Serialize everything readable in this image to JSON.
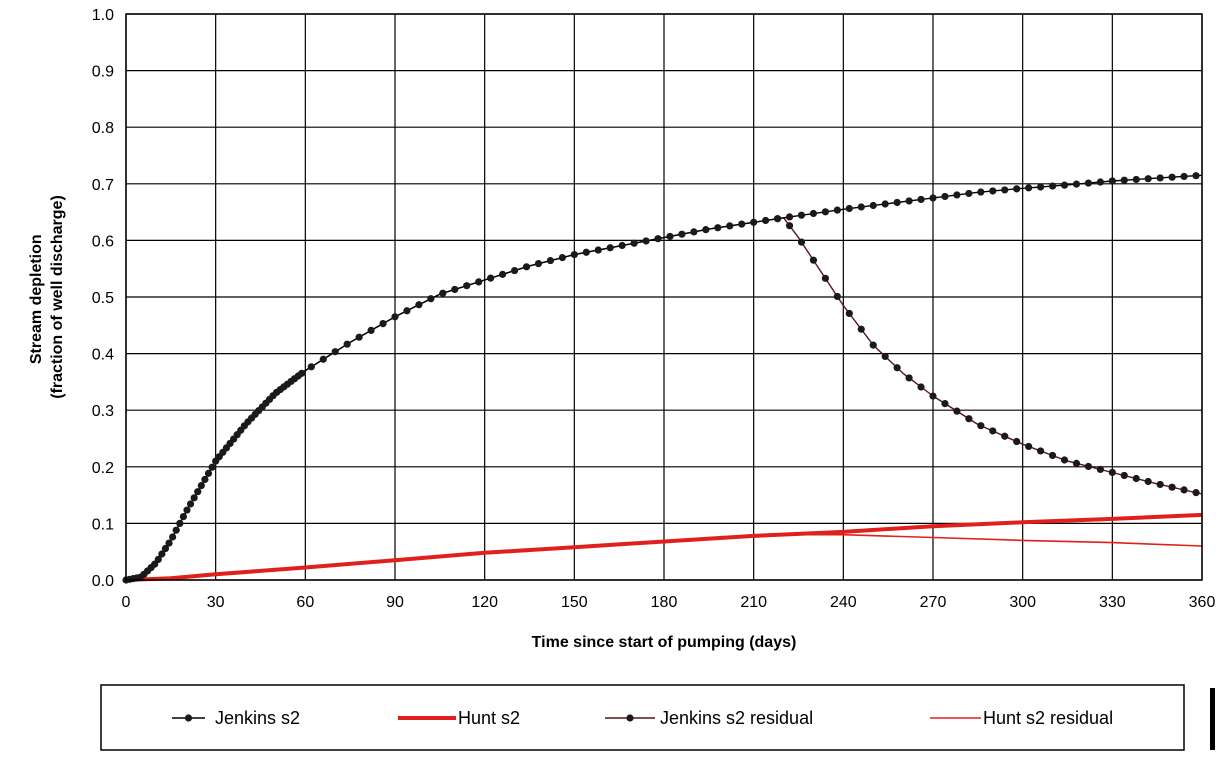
{
  "chart_data": {
    "type": "line",
    "title": "",
    "xlabel": "Time since start of pumping (days)",
    "ylabel_lines": [
      "Stream depletion",
      "(fraction of well discharge)"
    ],
    "xlim": [
      0,
      360
    ],
    "ylim": [
      0,
      1.0
    ],
    "x_ticks": [
      0,
      30,
      60,
      90,
      120,
      150,
      180,
      210,
      240,
      270,
      300,
      330,
      360
    ],
    "y_ticks": [
      0.0,
      0.1,
      0.2,
      0.3,
      0.4,
      0.5,
      0.6,
      0.7,
      0.8,
      0.9,
      1.0
    ],
    "y_tick_labels": [
      "0.0",
      "0.1",
      "0.2",
      "0.3",
      "0.4",
      "0.5",
      "0.6",
      "0.7",
      "0.8",
      "0.9",
      "1.0"
    ],
    "grid": true,
    "legend_position": "bottom",
    "series": [
      {
        "name": "Jenkins s2",
        "color": "#000000",
        "style": "line-with-dots",
        "x": [
          0,
          5,
          10,
          15,
          20,
          25,
          30,
          40,
          50,
          60,
          75,
          90,
          105,
          120,
          135,
          150,
          165,
          180,
          195,
          210,
          220,
          240,
          255,
          270,
          285,
          300,
          315,
          330,
          345,
          360
        ],
        "y": [
          0.0,
          0.005,
          0.03,
          0.07,
          0.12,
          0.165,
          0.21,
          0.275,
          0.33,
          0.37,
          0.42,
          0.465,
          0.505,
          0.53,
          0.555,
          0.575,
          0.59,
          0.605,
          0.62,
          0.632,
          0.64,
          0.655,
          0.665,
          0.675,
          0.685,
          0.692,
          0.698,
          0.705,
          0.71,
          0.715
        ]
      },
      {
        "name": "Hunt s2",
        "color": "#e0201c",
        "style": "thick-line",
        "x": [
          0,
          15,
          30,
          60,
          90,
          120,
          150,
          180,
          210,
          240,
          270,
          300,
          330,
          360
        ],
        "y": [
          0.0,
          0.003,
          0.01,
          0.022,
          0.035,
          0.048,
          0.058,
          0.068,
          0.078,
          0.085,
          0.095,
          0.102,
          0.108,
          0.115
        ]
      },
      {
        "name": "Jenkins s2 residual",
        "color": "#5a1418",
        "style": "line-with-dots",
        "x": [
          0,
          5,
          10,
          15,
          20,
          25,
          30,
          40,
          50,
          60,
          75,
          90,
          105,
          120,
          135,
          150,
          165,
          180,
          195,
          210,
          220,
          225,
          230,
          240,
          250,
          260,
          270,
          285,
          300,
          315,
          330,
          345,
          360
        ],
        "y": [
          0.0,
          0.005,
          0.03,
          0.07,
          0.12,
          0.165,
          0.21,
          0.275,
          0.33,
          0.37,
          0.42,
          0.465,
          0.505,
          0.53,
          0.555,
          0.575,
          0.59,
          0.605,
          0.62,
          0.632,
          0.64,
          0.605,
          0.565,
          0.485,
          0.415,
          0.365,
          0.325,
          0.275,
          0.24,
          0.21,
          0.19,
          0.17,
          0.152
        ]
      },
      {
        "name": "Hunt s2 residual",
        "color": "#e0201c",
        "style": "thin-line",
        "x": [
          0,
          15,
          30,
          60,
          90,
          120,
          150,
          180,
          210,
          220,
          240,
          270,
          300,
          330,
          360
        ],
        "y": [
          0.0,
          0.003,
          0.01,
          0.022,
          0.035,
          0.048,
          0.058,
          0.068,
          0.078,
          0.08,
          0.08,
          0.075,
          0.07,
          0.066,
          0.06
        ]
      }
    ]
  }
}
